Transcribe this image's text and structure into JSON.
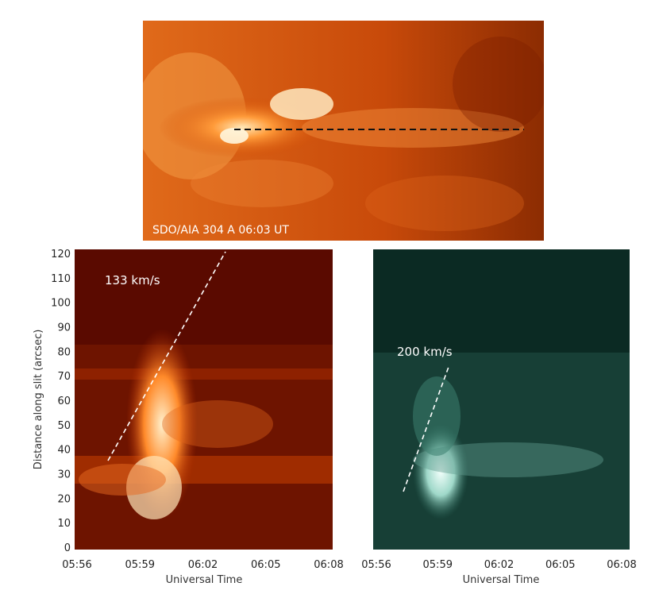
{
  "top_image": {
    "caption": "SDO/AIA  304 A 06:03 UT",
    "palette": {
      "dark": "#7a1e00",
      "mid": "#d24a00",
      "bright": "#ff9b3a",
      "hot": "#fff3d6"
    }
  },
  "left_panel": {
    "velocity_label": "133 km/s",
    "palette": {
      "dark": "#5a0a00",
      "mid": "#b22c00",
      "bright": "#ff8a2a",
      "hot": "#fff0cc"
    }
  },
  "right_panel": {
    "velocity_label": "200 km/s",
    "palette": {
      "dark": "#062a22",
      "mid": "#2c6b5d",
      "bright": "#9fd8c9",
      "hot": "#f2fffb"
    }
  },
  "axes": {
    "y_title": "Distance along slit (arcsec)",
    "y_ticks": [
      "0",
      "10",
      "20",
      "30",
      "40",
      "50",
      "60",
      "70",
      "80",
      "90",
      "100",
      "110",
      "120"
    ],
    "x_title": "Universal Time",
    "x_ticks": [
      "05:56",
      "05:59",
      "06:02",
      "06:05",
      "06:08"
    ]
  }
}
